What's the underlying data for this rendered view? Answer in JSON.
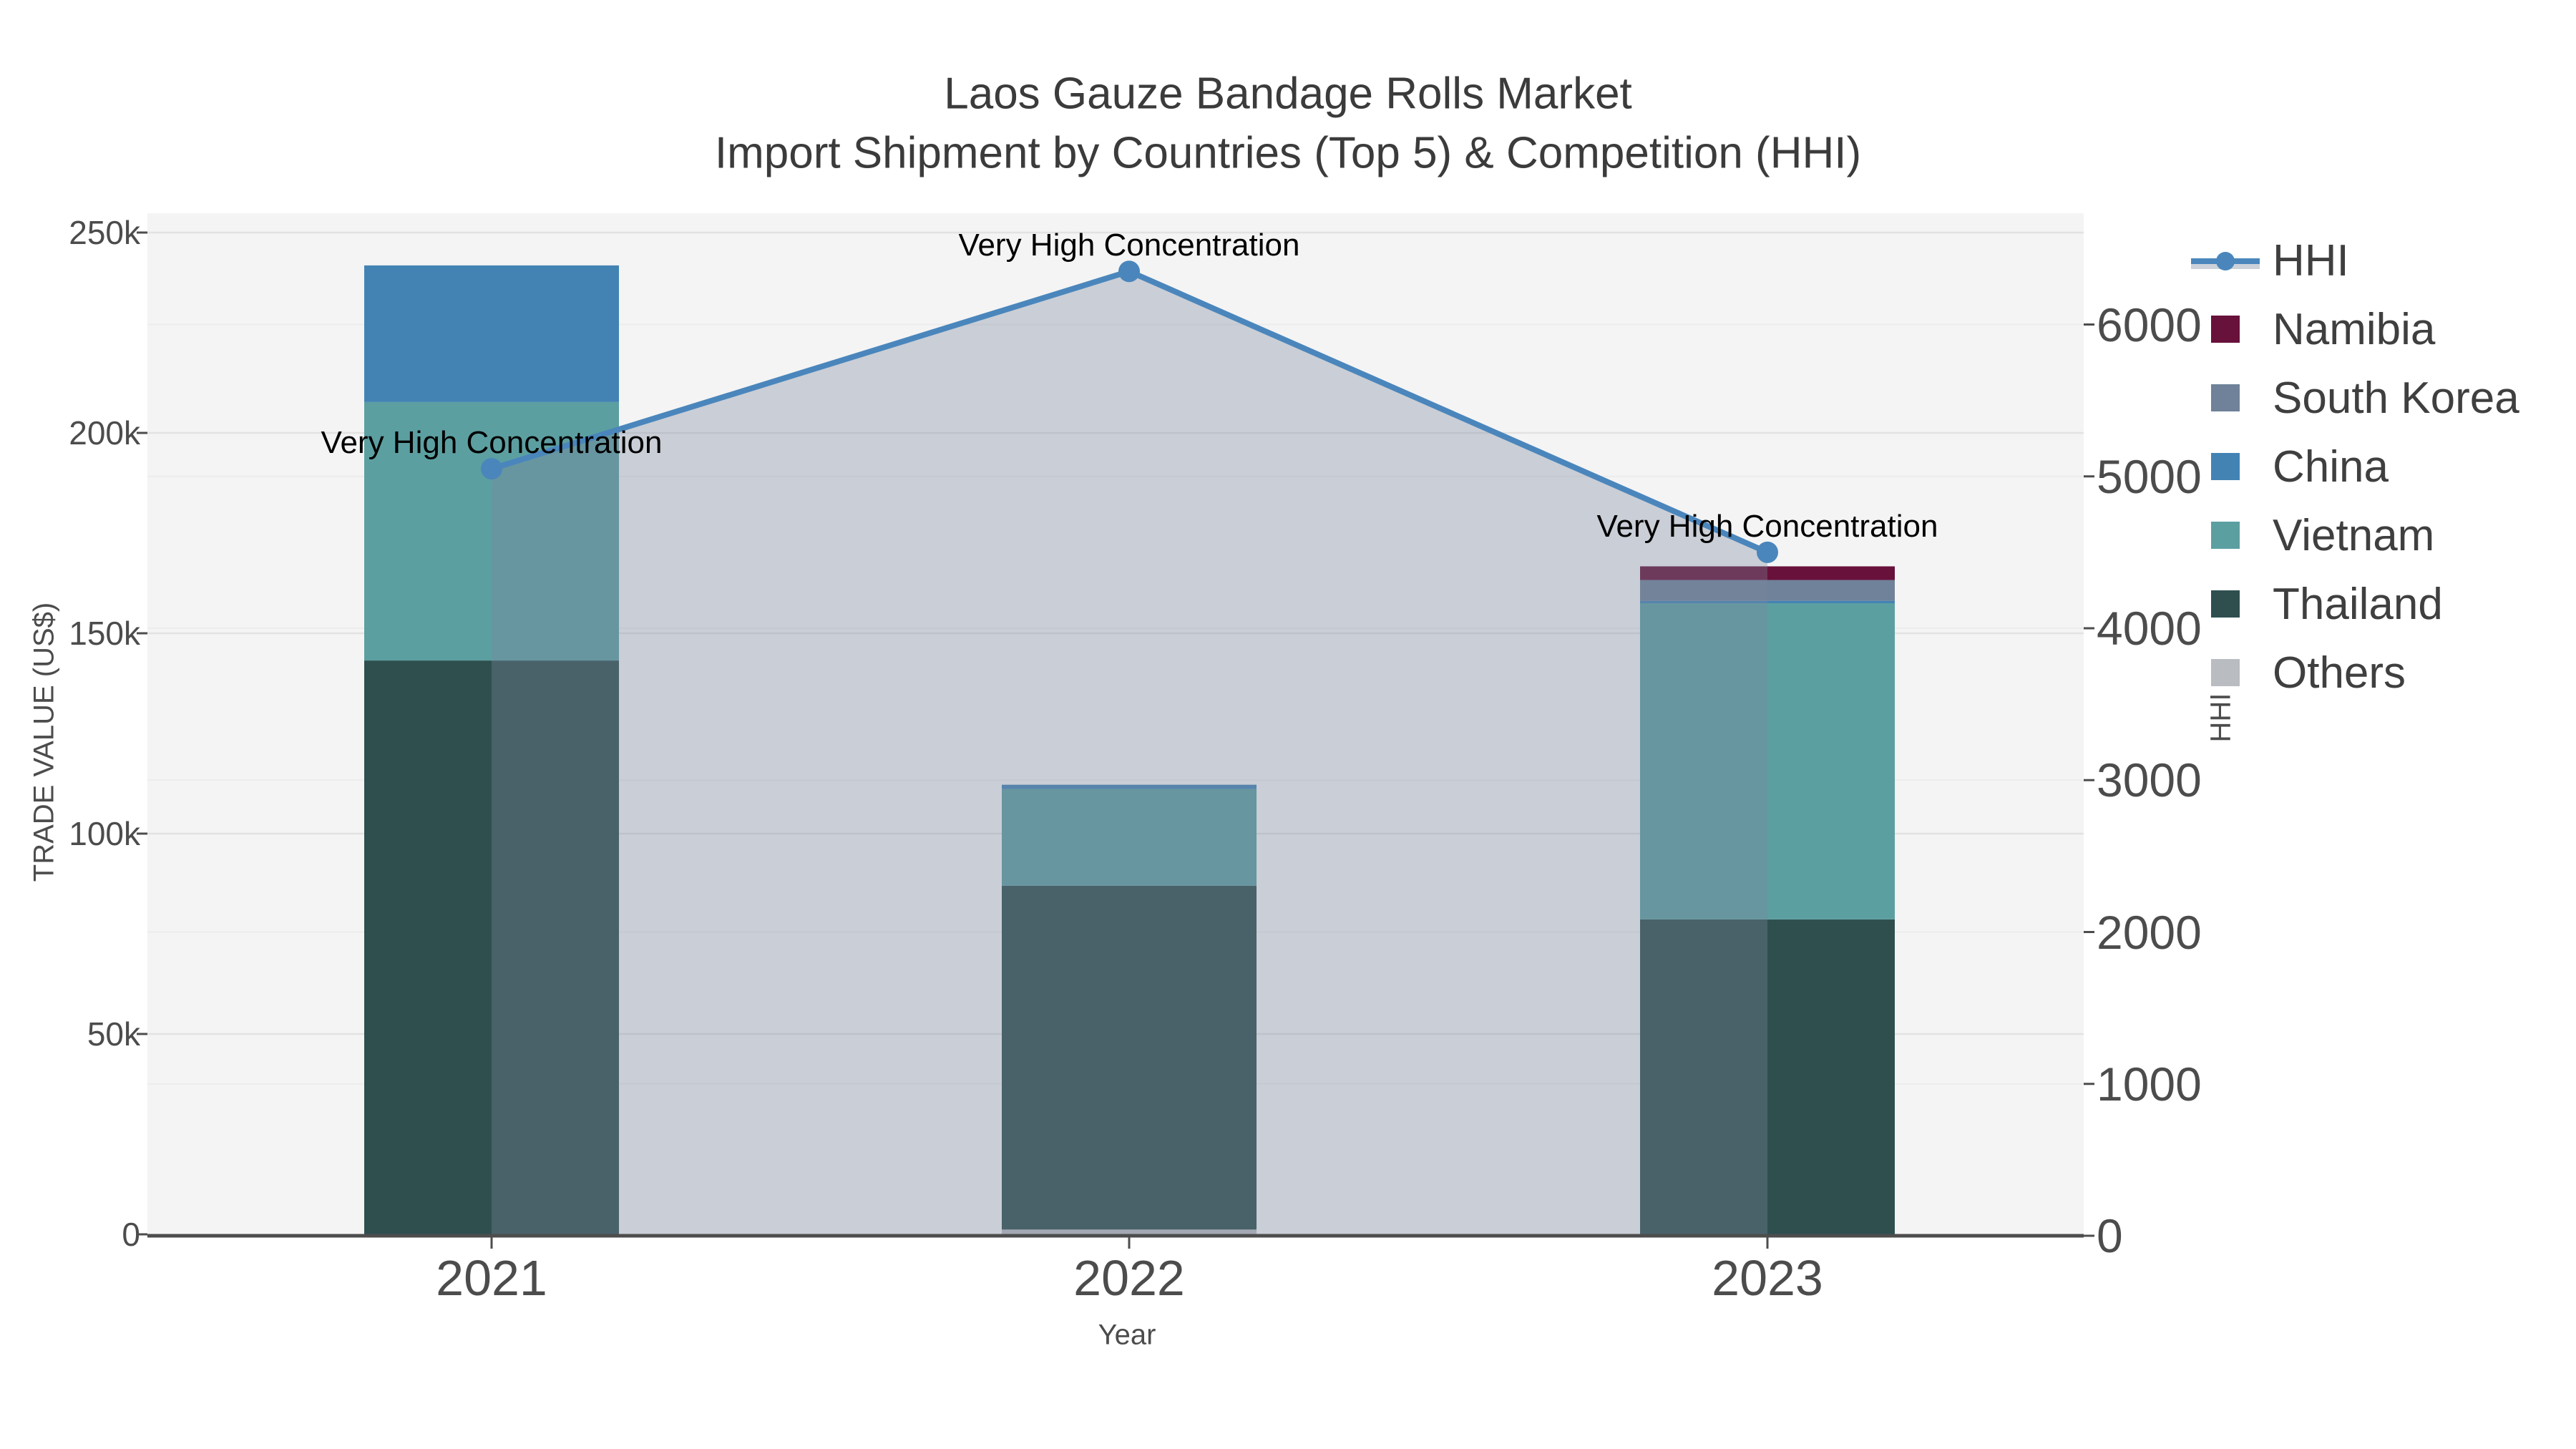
{
  "title": {
    "line1": "Laos Gauze Bandage Rolls Market",
    "line2": "Import Shipment by Countries (Top 5) & Competition (HHI)"
  },
  "axes": {
    "x": {
      "title": "Year",
      "categories": [
        "2021",
        "2022",
        "2023"
      ]
    },
    "y_left": {
      "title": "TRADE VALUE (US$)",
      "tick_labels": [
        "0",
        "50k",
        "100k",
        "150k",
        "200k",
        "250k"
      ],
      "tick_values": [
        0,
        50000,
        100000,
        150000,
        200000,
        250000
      ],
      "range": [
        0,
        255000
      ]
    },
    "y_right": {
      "title": "HHI",
      "tick_labels": [
        "0",
        "1000",
        "2000",
        "3000",
        "4000",
        "5000",
        "6000"
      ],
      "tick_values": [
        0,
        1000,
        2000,
        3000,
        4000,
        5000,
        6000
      ],
      "range": [
        0,
        6730
      ]
    }
  },
  "chart_data": {
    "type": "combo",
    "subtype": [
      "stacked-bar",
      "line-area"
    ],
    "categories": [
      "2021",
      "2022",
      "2023"
    ],
    "series": [
      {
        "name": "Others",
        "type": "bar",
        "color": "#b9bcc0",
        "values": [
          0,
          1200,
          0
        ]
      },
      {
        "name": "Thailand",
        "type": "bar",
        "color": "#2f4f4f",
        "values": [
          143200,
          85800,
          78600
        ]
      },
      {
        "name": "Vietnam",
        "type": "bar",
        "color": "#5c9fa1",
        "values": [
          64500,
          24100,
          78900
        ]
      },
      {
        "name": "China",
        "type": "bar",
        "color": "#4383b4",
        "values": [
          34100,
          1100,
          600
        ]
      },
      {
        "name": "South Korea",
        "type": "bar",
        "color": "#6f8299",
        "values": [
          0,
          0,
          5200
        ]
      },
      {
        "name": "Namibia",
        "type": "bar",
        "color": "#68113a",
        "values": [
          0,
          0,
          3400
        ]
      }
    ],
    "bar_totals": [
      241800,
      112200,
      166700
    ],
    "hhi": {
      "name": "HHI",
      "type": "line",
      "color": "#4a86bc",
      "area_fill": "rgba(124,136,158,0.35)",
      "values": [
        5050,
        6350,
        4500
      ]
    },
    "annotations": [
      {
        "text": "Very High Concentration",
        "category": "2021"
      },
      {
        "text": "Very High Concentration",
        "category": "2022"
      },
      {
        "text": "Very High Concentration",
        "category": "2023"
      }
    ],
    "legend": [
      {
        "label": "HHI",
        "type": "line",
        "color": "#4a86bc"
      },
      {
        "label": "Namibia",
        "type": "swatch",
        "color": "#68113a"
      },
      {
        "label": "South Korea",
        "type": "swatch",
        "color": "#6f8299"
      },
      {
        "label": "China",
        "type": "swatch",
        "color": "#4383b4"
      },
      {
        "label": "Vietnam",
        "type": "swatch",
        "color": "#5c9fa1"
      },
      {
        "label": "Thailand",
        "type": "swatch",
        "color": "#2f4f4f"
      },
      {
        "label": "Others",
        "type": "swatch",
        "color": "#b9bcc0"
      }
    ],
    "colors": {
      "plot_bg": "#f4f4f4",
      "grid": "#e2e2e2",
      "grid_secondary": "#ececec",
      "axis_line": "#4d4d4d",
      "tick_text": "#4c4c4c",
      "title_text": "#3b3b3b"
    }
  }
}
